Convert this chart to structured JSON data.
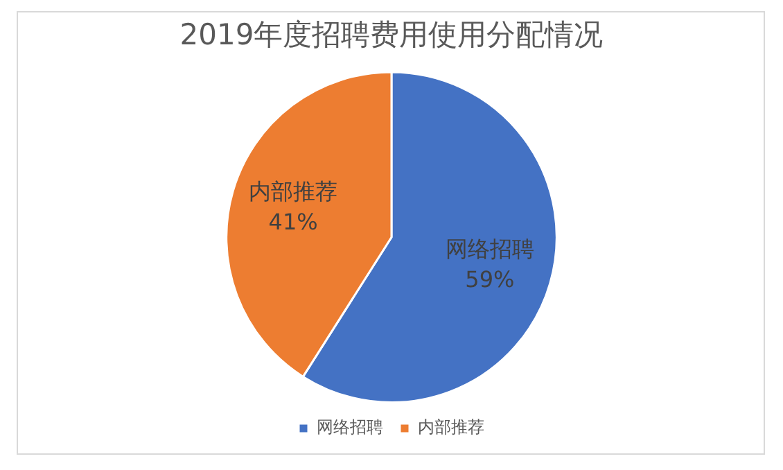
{
  "chart_data": {
    "type": "pie",
    "title": "2019年度招聘费用使用分配情况",
    "categories": [
      "网络招聘",
      "内部推荐"
    ],
    "values": [
      59,
      41
    ],
    "value_labels": [
      "59%",
      "41%"
    ],
    "colors": [
      "#4472c4",
      "#ed7d31"
    ],
    "legend": "bottom"
  }
}
